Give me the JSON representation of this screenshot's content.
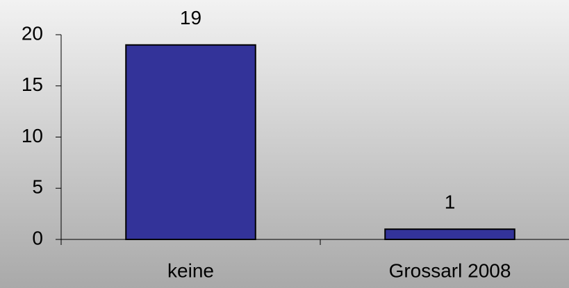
{
  "chart_data": {
    "type": "bar",
    "categories": [
      "keine",
      "Grossarl 2008"
    ],
    "values": [
      19,
      1
    ],
    "color": "#333399",
    "ylim": [
      0,
      20
    ],
    "yticks": [
      0,
      5,
      10,
      15,
      20
    ],
    "data_labels": true
  }
}
